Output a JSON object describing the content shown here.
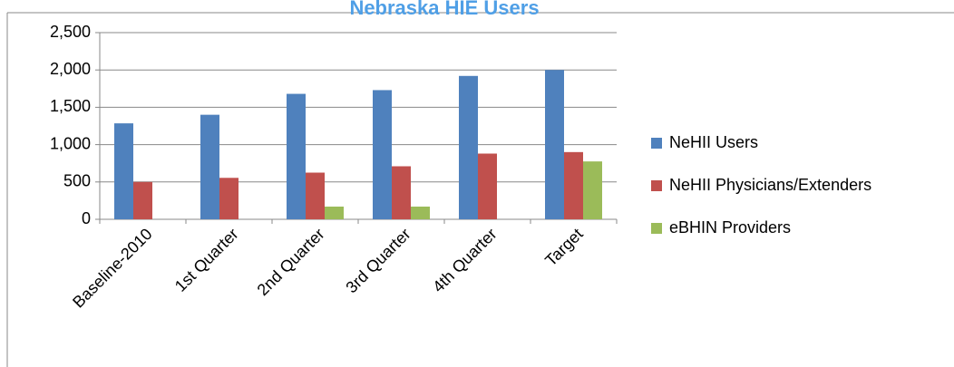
{
  "chart_data": {
    "type": "bar",
    "title": "Nebraska HIE Users",
    "categories": [
      "Baseline-2010",
      "1st Quarter",
      "2nd Quarter",
      "3rd Quarter",
      "4th Quarter",
      "Target"
    ],
    "series": [
      {
        "name": "NeHII Users",
        "color": "#4f81bd",
        "values": [
          1285,
          1400,
          1680,
          1730,
          1920,
          2000
        ]
      },
      {
        "name": "NeHII Physicians/Extenders",
        "color": "#c0504d",
        "values": [
          500,
          555,
          625,
          710,
          880,
          900
        ]
      },
      {
        "name": "eBHIN Providers",
        "color": "#9bbb59",
        "values": [
          null,
          null,
          170,
          170,
          null,
          775
        ]
      }
    ],
    "ylim": [
      0,
      2500
    ],
    "yticks": [
      0,
      {
        "value": 500,
        "label": "500"
      },
      {
        "value": 1000,
        "label": "1,000"
      },
      {
        "value": 1500,
        "label": "1,500"
      },
      {
        "value": 2000,
        "label": "2,000"
      },
      {
        "value": 2500,
        "label": "2,500"
      }
    ],
    "grid": true,
    "legend": "right"
  }
}
